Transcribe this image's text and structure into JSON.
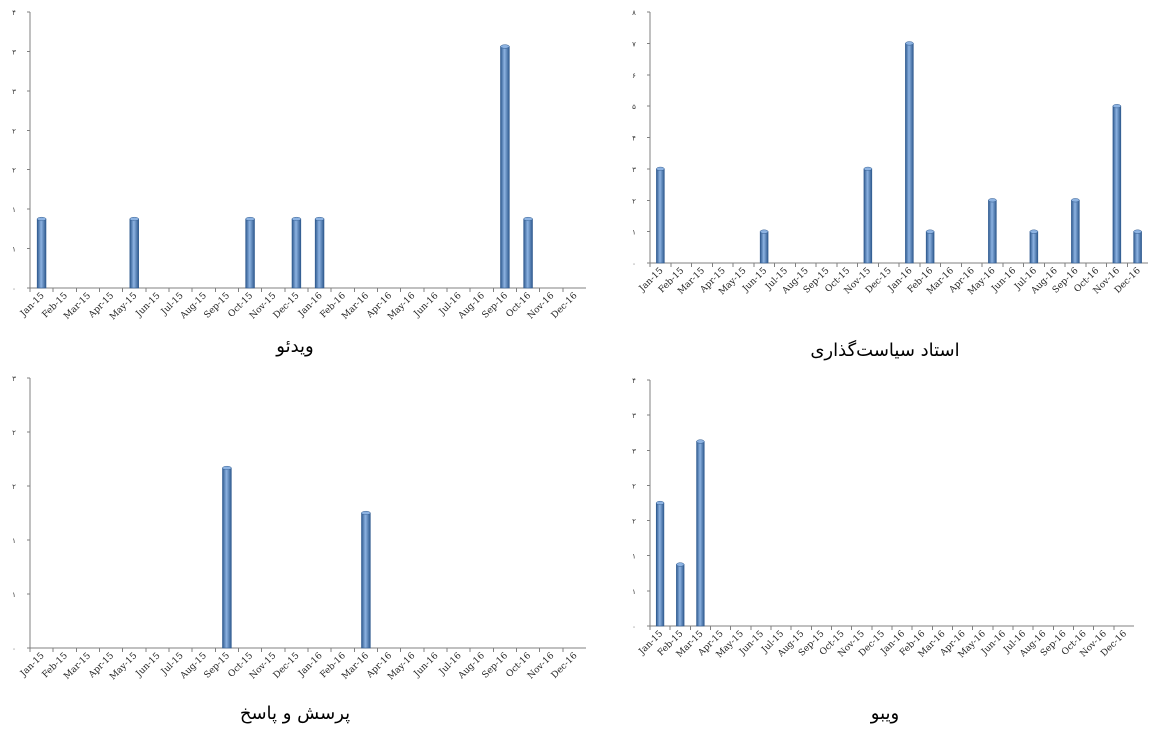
{
  "colors": {
    "bar": "#4f81bd",
    "bar_light": "#8db3e2",
    "bar_dark": "#2f5a8f",
    "axis": "#808080"
  },
  "chart_data": [
    {
      "type": "bar",
      "title": "ویدئو",
      "categories": [
        "Jan-15",
        "Feb-15",
        "Mar-15",
        "Apr-15",
        "May-15",
        "Jun-15",
        "Jul-15",
        "Aug-15",
        "Sep-15",
        "Oct-15",
        "Nov-15",
        "Dec-15",
        "Jan-16",
        "Feb-16",
        "Mar-16",
        "Apr-16",
        "May-16",
        "Jun-16",
        "Jul-16",
        "Aug-16",
        "Sep-16",
        "Oct-16",
        "Nov-16",
        "Dec-16"
      ],
      "values": [
        1,
        0,
        0,
        0,
        1,
        0,
        0,
        0,
        0,
        1,
        0,
        1,
        1,
        0,
        0,
        0,
        0,
        0,
        0,
        0,
        3.5,
        1,
        0,
        0
      ],
      "yticks": [
        "۰",
        "۱",
        "۱",
        "۲",
        "۲",
        "۳",
        "۳",
        "۴"
      ],
      "ylim": [
        0,
        4
      ],
      "xlabel": "",
      "ylabel": "",
      "grid": false
    },
    {
      "type": "bar",
      "title": "استاد سیاست‌گذاری",
      "categories": [
        "Jan-15",
        "Feb-15",
        "Mar-15",
        "Apr-15",
        "May-15",
        "Jun-15",
        "Jul-15",
        "Aug-15",
        "Sep-15",
        "Oct-15",
        "Nov-15",
        "Dec-15",
        "Jan-16",
        "Feb-16",
        "Mar-16",
        "Apr-16",
        "May-16",
        "Jun-16",
        "Jul-16",
        "Aug-16",
        "Sep-16",
        "Oct-16",
        "Nov-16",
        "Dec-16"
      ],
      "values": [
        3,
        0,
        0,
        0,
        0,
        1,
        0,
        0,
        0,
        0,
        3,
        0,
        7,
        1,
        0,
        0,
        2,
        0,
        1,
        0,
        2,
        0,
        5,
        1
      ],
      "yticks": [
        "۰",
        "۱",
        "۲",
        "۳",
        "۴",
        "۵",
        "۶",
        "۷",
        "۸"
      ],
      "ylim": [
        0,
        8
      ],
      "xlabel": "",
      "ylabel": "",
      "grid": false
    },
    {
      "type": "bar",
      "title": "پرسش و پاسخ",
      "categories": [
        "Jan-15",
        "Feb-15",
        "Mar-15",
        "Apr-15",
        "May-15",
        "Jun-15",
        "Jul-15",
        "Aug-15",
        "Sep-15",
        "Oct-15",
        "Nov-15",
        "Dec-15",
        "Jan-16",
        "Feb-16",
        "Mar-16",
        "Apr-16",
        "May-16",
        "Jun-16",
        "Jul-16",
        "Aug-16",
        "Sep-16",
        "Oct-16",
        "Nov-16",
        "Dec-16"
      ],
      "values": [
        0,
        0,
        0,
        0,
        0,
        0,
        0,
        0,
        2,
        0,
        0,
        0,
        0,
        0,
        1.5,
        0,
        0,
        0,
        0,
        0,
        0,
        0,
        0,
        0
      ],
      "yticks": [
        "۰",
        "۱",
        "۱",
        "۲",
        "۲",
        "۳"
      ],
      "ylim": [
        0,
        3
      ],
      "xlabel": "",
      "ylabel": "",
      "grid": false
    },
    {
      "type": "bar",
      "title": "ویبو",
      "categories": [
        "Jan-15",
        "Feb-15",
        "Mar-15",
        "Apr-15",
        "May-15",
        "Jun-15",
        "Jul-15",
        "Aug-15",
        "Sep-15",
        "Oct-15",
        "Nov-15",
        "Dec-15",
        "Jan-16",
        "Feb-16",
        "Mar-16",
        "Apr-16",
        "May-16",
        "Jun-16",
        "Jul-16",
        "Aug-16",
        "Sep-16",
        "Oct-16",
        "Nov-16",
        "Dec-16"
      ],
      "values": [
        2,
        1,
        3,
        0,
        0,
        0,
        0,
        0,
        0,
        0,
        0,
        0,
        0,
        0,
        0,
        0,
        0,
        0,
        0,
        0,
        0,
        0,
        0,
        0
      ],
      "yticks": [
        "۰",
        "۱",
        "۱",
        "۲",
        "۲",
        "۳",
        "۳",
        "۴"
      ],
      "ylim": [
        0,
        4
      ],
      "xlabel": "",
      "ylabel": "",
      "grid": false
    }
  ]
}
